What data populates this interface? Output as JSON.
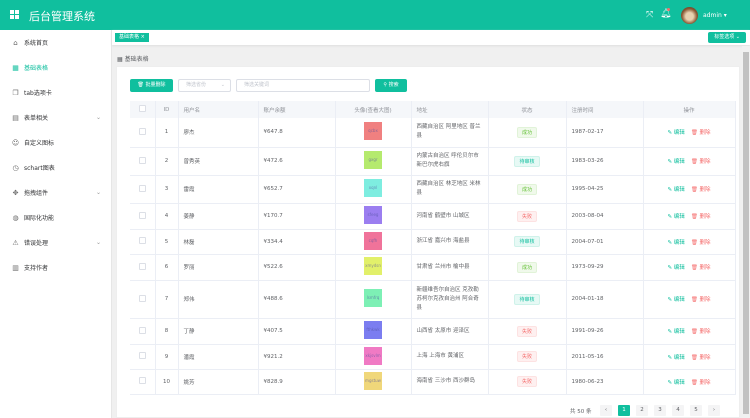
{
  "header": {
    "title": "后台管理系统",
    "user": "admin",
    "accent": "#10bf9e"
  },
  "sidebar": {
    "items": [
      {
        "label": "系统首页",
        "icon": "home-icon"
      },
      {
        "label": "基础表格",
        "icon": "grid-icon",
        "active": true
      },
      {
        "label": "tab选项卡",
        "icon": "copy-icon"
      },
      {
        "label": "表单相关",
        "icon": "form-icon",
        "sub": true
      },
      {
        "label": "自定义图标",
        "icon": "smile-icon"
      },
      {
        "label": "schart图表",
        "icon": "clock-icon"
      },
      {
        "label": "拖拽组件",
        "icon": "drag-icon",
        "sub": true
      },
      {
        "label": "国际化功能",
        "icon": "globe-icon"
      },
      {
        "label": "错误处理",
        "icon": "warning-icon",
        "sub": true
      },
      {
        "label": "支持作者",
        "icon": "book-icon"
      }
    ]
  },
  "tags": {
    "active": "基础表格",
    "options": "标签选项"
  },
  "breadcrumb": "基础表格",
  "toolbar": {
    "batch_delete": "批量删除",
    "province_placeholder": "筛选省份",
    "keyword_placeholder": "筛选关键词",
    "search": "搜索"
  },
  "table": {
    "headers": [
      "",
      "ID",
      "用户名",
      "账户余额",
      "头像(查看大图)",
      "地址",
      "状态",
      "注册时间",
      "操作"
    ],
    "edit": "编辑",
    "delete": "删除",
    "rows": [
      {
        "id": "1",
        "name": "廖杰",
        "balance": "¥647.8",
        "avatar": "qcbx",
        "color": "#f08080",
        "address": "西藏自治区 阿里地区 普兰县",
        "status": "成功",
        "st": "ok",
        "date": "1987-02-17"
      },
      {
        "id": "2",
        "name": "曾秀英",
        "balance": "¥472.6",
        "avatar": "gxgr",
        "color": "#b5ea6e",
        "address": "内蒙古自治区 呼伦贝尔市 新巴尔虎右旗",
        "status": "待审核",
        "st": "wait",
        "date": "1983-03-26"
      },
      {
        "id": "3",
        "name": "雷霞",
        "balance": "¥652.7",
        "avatar": "xqnl",
        "color": "#7eede0",
        "address": "西藏自治区 林芝地区 米林县",
        "status": "成功",
        "st": "ok",
        "date": "1995-04-25"
      },
      {
        "id": "4",
        "name": "姜静",
        "balance": "¥170.7",
        "avatar": "sfeeg",
        "color": "#9b7ef0",
        "address": "河南省 鹤壁市 山城区",
        "status": "失败",
        "st": "fail",
        "date": "2003-08-04"
      },
      {
        "id": "5",
        "name": "林磊",
        "balance": "¥334.4",
        "avatar": "cqfh",
        "color": "#f0739a",
        "address": "浙江省 嘉兴市 海盐县",
        "status": "待审核",
        "st": "wait",
        "date": "2004-07-01"
      },
      {
        "id": "6",
        "name": "罗丽",
        "balance": "¥522.6",
        "avatar": "xmydsn",
        "color": "#e2f06a",
        "address": "甘肃省 兰州市 榆中县",
        "status": "成功",
        "st": "ok",
        "date": "1973-09-29"
      },
      {
        "id": "7",
        "name": "郑伟",
        "balance": "¥488.6",
        "avatar": "lsmfrq",
        "color": "#7df0b5",
        "address": "新疆维吾尔自治区 克孜勒苏柯尔克孜自治州 阿合奇县",
        "status": "待审核",
        "st": "wait",
        "date": "2004-01-18"
      },
      {
        "id": "8",
        "name": "丁静",
        "balance": "¥407.5",
        "avatar": "fthkwk",
        "color": "#7b7df0",
        "address": "山西省 太原市 迎泽区",
        "status": "失败",
        "st": "fail",
        "date": "1991-09-26"
      },
      {
        "id": "9",
        "name": "潘霞",
        "balance": "¥921.2",
        "avatar": "xkjsvlm",
        "color": "#f07ac4",
        "address": "上海 上海市 黄浦区",
        "status": "失败",
        "st": "fail",
        "date": "2011-05-16"
      },
      {
        "id": "10",
        "name": "姚芳",
        "balance": "¥828.9",
        "avatar": "mgstuw",
        "color": "#f0d77a",
        "address": "海南省 三沙市 西沙群岛",
        "status": "失败",
        "st": "fail",
        "date": "1980-06-23"
      }
    ]
  },
  "pagination": {
    "total": "共 50 条",
    "pages": [
      "1",
      "2",
      "3",
      "4",
      "5"
    ],
    "current": "1"
  }
}
